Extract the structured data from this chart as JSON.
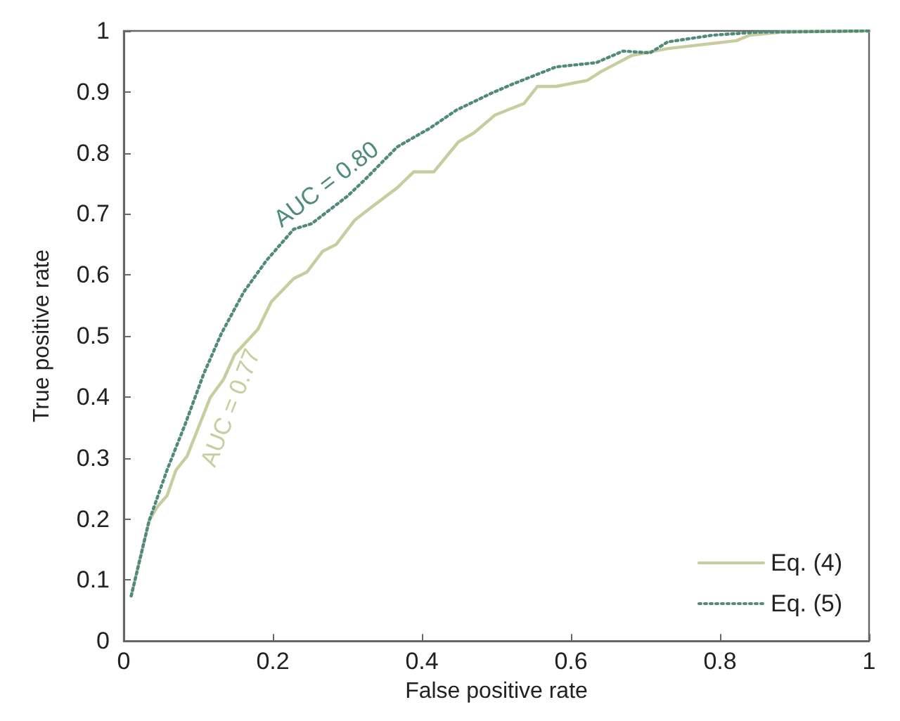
{
  "chart_data": {
    "type": "line",
    "xlabel": "False positive rate",
    "ylabel": "True positive rate",
    "xlim": [
      0,
      1
    ],
    "ylim": [
      0,
      1
    ],
    "xticks": [
      0,
      0.2,
      0.4,
      0.6,
      0.8,
      1
    ],
    "yticks": [
      0,
      0.1,
      0.2,
      0.3,
      0.4,
      0.5,
      0.6,
      0.7,
      0.8,
      0.9,
      1
    ],
    "grid": false,
    "legend": "bottom right",
    "marker": "none",
    "series": [
      {
        "name": "Eq. (4)",
        "color": "#c8cc9e",
        "line_style": "solid",
        "x": [
          0.01,
          0.034,
          0.045,
          0.058,
          0.07,
          0.085,
          0.116,
          0.134,
          0.149,
          0.18,
          0.198,
          0.228,
          0.246,
          0.267,
          0.285,
          0.31,
          0.33,
          0.367,
          0.389,
          0.416,
          0.449,
          0.47,
          0.498,
          0.537,
          0.555,
          0.58,
          0.622,
          0.64,
          0.682,
          0.73,
          0.822,
          0.84,
          0.882,
          1
        ],
        "values": [
          0.074,
          0.197,
          0.22,
          0.238,
          0.28,
          0.303,
          0.399,
          0.429,
          0.47,
          0.511,
          0.556,
          0.594,
          0.605,
          0.639,
          0.65,
          0.69,
          0.709,
          0.743,
          0.769,
          0.769,
          0.818,
          0.833,
          0.862,
          0.881,
          0.909,
          0.909,
          0.919,
          0.933,
          0.96,
          0.971,
          0.984,
          0.993,
          0.998,
          1
        ]
      },
      {
        "name": "Eq. (5)",
        "color": "#4f8a7c",
        "line_style": "dotted",
        "x": [
          0.01,
          0.034,
          0.058,
          0.082,
          0.107,
          0.131,
          0.161,
          0.191,
          0.228,
          0.252,
          0.3,
          0.325,
          0.367,
          0.41,
          0.446,
          0.49,
          0.518,
          0.58,
          0.634,
          0.67,
          0.706,
          0.73,
          0.79,
          0.85,
          1
        ],
        "values": [
          0.074,
          0.197,
          0.28,
          0.354,
          0.437,
          0.504,
          0.572,
          0.623,
          0.675,
          0.684,
          0.729,
          0.758,
          0.81,
          0.84,
          0.87,
          0.896,
          0.911,
          0.941,
          0.948,
          0.967,
          0.964,
          0.982,
          0.993,
          0.998,
          1
        ]
      }
    ],
    "annotations": [
      "AUC = 0.77",
      "AUC = 0.80"
    ]
  }
}
